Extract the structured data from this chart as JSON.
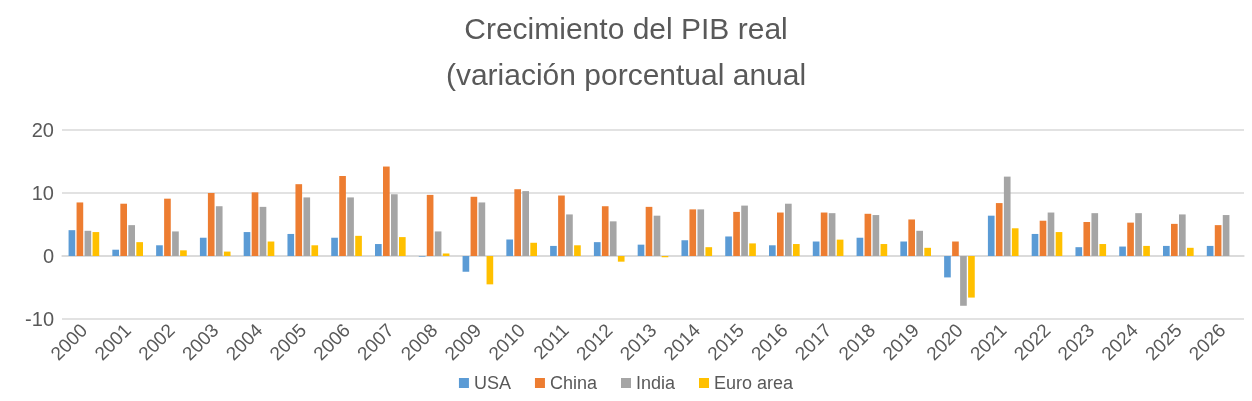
{
  "chart_data": {
    "type": "bar",
    "title": "Crecimiento del PIB real",
    "subtitle": "(variación porcentual anual",
    "categories": [
      "2000",
      "2001",
      "2002",
      "2003",
      "2004",
      "2005",
      "2006",
      "2007",
      "2008",
      "2009",
      "2010",
      "2011",
      "2012",
      "2013",
      "2014",
      "2015",
      "2016",
      "2017",
      "2018",
      "2019",
      "2020",
      "2021",
      "2022",
      "2023",
      "2024",
      "2025",
      "2026"
    ],
    "series": [
      {
        "name": "USA",
        "color": "#5b9bd5",
        "values": [
          4.1,
          1.0,
          1.7,
          2.9,
          3.8,
          3.5,
          2.9,
          1.9,
          -0.1,
          -2.5,
          2.6,
          1.6,
          2.2,
          1.8,
          2.5,
          3.1,
          1.7,
          2.3,
          2.9,
          2.3,
          -3.4,
          6.4,
          3.5,
          1.4,
          1.5,
          1.6,
          1.6
        ]
      },
      {
        "name": "China",
        "color": "#ed7d31",
        "values": [
          8.5,
          8.3,
          9.1,
          10.0,
          10.1,
          11.4,
          12.7,
          14.2,
          9.7,
          9.4,
          10.6,
          9.6,
          7.9,
          7.8,
          7.4,
          7.0,
          6.9,
          6.9,
          6.7,
          5.8,
          2.3,
          8.4,
          5.6,
          5.4,
          5.3,
          5.1,
          4.9
        ]
      },
      {
        "name": "India",
        "color": "#a5a5a5",
        "values": [
          4.0,
          4.9,
          3.9,
          7.9,
          7.8,
          9.3,
          9.3,
          9.8,
          3.9,
          8.5,
          10.3,
          6.6,
          5.5,
          6.4,
          7.4,
          8.0,
          8.3,
          6.8,
          6.5,
          4.0,
          -7.9,
          12.6,
          6.9,
          6.8,
          6.8,
          6.6,
          6.5
        ]
      },
      {
        "name": "Euro area",
        "color": "#ffc000",
        "values": [
          3.8,
          2.2,
          0.9,
          0.7,
          2.3,
          1.7,
          3.2,
          3.0,
          0.4,
          -4.5,
          2.1,
          1.7,
          -0.9,
          -0.2,
          1.4,
          2.0,
          1.9,
          2.6,
          1.9,
          1.3,
          -6.6,
          4.4,
          3.8,
          1.9,
          1.6,
          1.3,
          null
        ]
      }
    ],
    "ylim": [
      -10,
      20
    ],
    "yticks": [
      -10,
      0,
      10,
      20
    ],
    "grid": "y",
    "legend": "bottom"
  }
}
